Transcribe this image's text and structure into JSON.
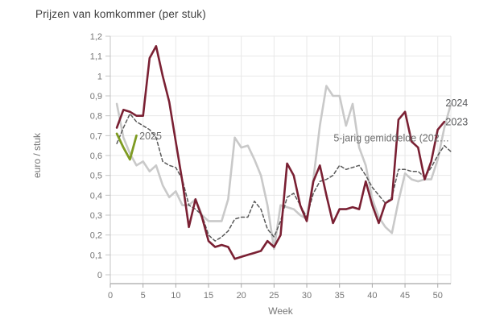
{
  "chart_data": {
    "type": "line",
    "title": "Prijzen van komkommer (per stuk)",
    "xlabel": "Week",
    "ylabel": "euro / stuk",
    "xlim": [
      0,
      52
    ],
    "ylim": [
      0,
      1.2
    ],
    "grid": true,
    "x_ticks": [
      0,
      5,
      10,
      15,
      20,
      25,
      30,
      35,
      40,
      45,
      50
    ],
    "y_tick_labels": [
      "0",
      "0,1",
      "0,2",
      "0,3",
      "0,4",
      "0,5",
      "0,6",
      "0,7",
      "0,8",
      "0,9",
      "1",
      "1,1",
      "1,2"
    ],
    "y_tick_step": 0.1,
    "legend_position": "end-of-line-labels",
    "series": [
      {
        "name": "2024",
        "color": "#c9c9c9",
        "dash": null,
        "width": 2.6,
        "x_start": 1,
        "values": [
          0.86,
          0.69,
          0.61,
          0.55,
          0.57,
          0.52,
          0.55,
          0.45,
          0.39,
          0.42,
          0.35,
          0.35,
          0.38,
          0.3,
          0.27,
          0.27,
          0.27,
          0.38,
          0.69,
          0.64,
          0.65,
          0.58,
          0.5,
          0.35,
          0.13,
          0.35,
          0.34,
          0.33,
          0.3,
          0.28,
          0.48,
          0.75,
          0.95,
          0.9,
          0.9,
          0.75,
          0.86,
          0.64,
          0.55,
          0.38,
          0.29,
          0.24,
          0.21,
          0.37,
          0.51,
          0.48,
          0.47,
          0.48,
          0.48,
          0.58,
          0.74,
          0.86
        ]
      },
      {
        "name": "5-jarig gemiddelde",
        "color": "#595959",
        "dash": "4 3",
        "width": 1.5,
        "x_start": 1,
        "values": [
          0.66,
          0.74,
          0.81,
          0.77,
          0.75,
          0.73,
          0.69,
          0.57,
          0.55,
          0.54,
          0.48,
          0.35,
          0.33,
          0.3,
          0.2,
          0.17,
          0.19,
          0.22,
          0.28,
          0.29,
          0.29,
          0.37,
          0.33,
          0.23,
          0.19,
          0.27,
          0.39,
          0.41,
          0.35,
          0.29,
          0.41,
          0.47,
          0.48,
          0.5,
          0.55,
          0.53,
          0.54,
          0.55,
          0.5,
          0.44,
          0.4,
          0.36,
          0.39,
          0.53,
          0.53,
          0.52,
          0.52,
          0.49,
          0.54,
          0.6,
          0.65,
          0.62
        ]
      },
      {
        "name": "2023",
        "color": "#7a2033",
        "dash": null,
        "width": 2.6,
        "x_start": 1,
        "values": [
          0.74,
          0.83,
          0.82,
          0.8,
          0.8,
          1.09,
          1.15,
          1.0,
          0.87,
          0.67,
          0.47,
          0.24,
          0.38,
          0.29,
          0.17,
          0.14,
          0.15,
          0.14,
          0.08,
          0.09,
          0.1,
          0.11,
          0.12,
          0.17,
          0.14,
          0.2,
          0.56,
          0.5,
          0.35,
          0.27,
          0.47,
          0.55,
          0.4,
          0.26,
          0.33,
          0.33,
          0.34,
          0.33,
          0.47,
          0.35,
          0.26,
          0.36,
          0.38,
          0.78,
          0.82,
          0.67,
          0.64,
          0.48,
          0.57,
          0.73,
          0.77
        ]
      },
      {
        "name": "2025",
        "color": "#7e9b22",
        "dash": null,
        "width": 2.8,
        "x_start": 1,
        "values": [
          0.71,
          0.64,
          0.58,
          0.7
        ]
      }
    ],
    "annotations": [
      {
        "text": "2025",
        "week": 3.95,
        "value": 0.7,
        "color": "#6e6e6e"
      },
      {
        "text": "5-jarig gemiddelde (202…",
        "week": 33.6,
        "value": 0.69,
        "color": "#6e6e6e"
      },
      {
        "text": "2024",
        "week": 50.7,
        "value": 0.865,
        "color": "#58595b"
      },
      {
        "text": "2023",
        "week": 50.7,
        "value": 0.77,
        "color": "#58595b"
      }
    ]
  },
  "style": {
    "grid_color": "#e8e8e8",
    "axis_line_color": "#a8a8a8",
    "minor_axis_color": "#c4c4c4",
    "tick_text_color": "#767676",
    "title_color": "#3d3d3d"
  }
}
